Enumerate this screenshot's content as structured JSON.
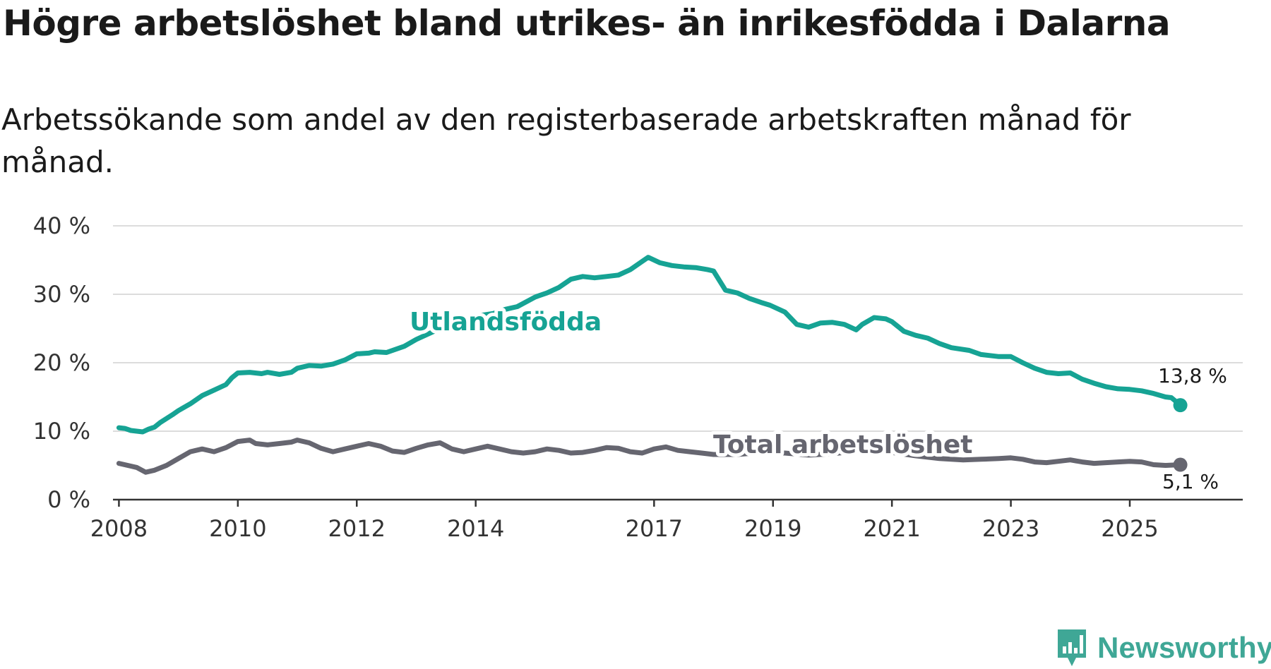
{
  "title": "Högre arbetslöshet bland utrikes- än inrikesfödda i Dalarna",
  "subtitle": "Arbetssökande som andel av den registerbaserade arbetskraften månad för månad.",
  "brand": "Newsworthy",
  "chart_data": {
    "type": "line",
    "ylim": [
      0,
      40
    ],
    "xlim": [
      2007.9,
      2026.9
    ],
    "y_ticks": [
      0,
      10,
      20,
      30,
      40
    ],
    "y_tick_labels": [
      "0 %",
      "10 %",
      "20 %",
      "30 %",
      "40 %"
    ],
    "x_ticks": [
      2008,
      2010,
      2012,
      2014,
      2017,
      2019,
      2021,
      2023,
      2025
    ],
    "x_tick_labels": [
      "2008",
      "2010",
      "2012",
      "2014",
      "2017",
      "2019",
      "2021",
      "2023",
      "2025"
    ],
    "grid": true,
    "series": [
      {
        "name": "Utlandsfödda",
        "color": "#16a394",
        "end_label": "13,8 %",
        "x": [
          2008.0,
          2008.1,
          2008.2,
          2008.4,
          2008.5,
          2008.6,
          2008.7,
          2008.9,
          2009.0,
          2009.2,
          2009.4,
          2009.6,
          2009.8,
          2009.9,
          2010.0,
          2010.2,
          2010.4,
          2010.5,
          2010.7,
          2010.9,
          2011.0,
          2011.2,
          2011.4,
          2011.6,
          2011.8,
          2012.0,
          2012.2,
          2012.3,
          2012.5,
          2012.8,
          2013.0,
          2013.3,
          2013.5,
          2013.8,
          2014.0,
          2014.3,
          2014.5,
          2014.7,
          2015.0,
          2015.2,
          2015.4,
          2015.6,
          2015.8,
          2016.0,
          2016.2,
          2016.4,
          2016.6,
          2016.8,
          2016.9,
          2017.1,
          2017.3,
          2017.5,
          2017.7,
          2017.9,
          2018.0,
          2018.2,
          2018.4,
          2018.6,
          2018.8,
          2018.95,
          2019.2,
          2019.4,
          2019.6,
          2019.8,
          2020.0,
          2020.2,
          2020.4,
          2020.5,
          2020.7,
          2020.9,
          2021.0,
          2021.2,
          2021.4,
          2021.6,
          2021.8,
          2022.0,
          2022.3,
          2022.5,
          2022.8,
          2023.0,
          2023.2,
          2023.4,
          2023.6,
          2023.8,
          2024.0,
          2024.2,
          2024.4,
          2024.6,
          2024.8,
          2025.0,
          2025.2,
          2025.4,
          2025.6,
          2025.7,
          2025.85
        ],
        "values": [
          10.5,
          10.4,
          10.1,
          9.9,
          10.3,
          10.6,
          11.3,
          12.4,
          13.0,
          14.0,
          15.2,
          16.0,
          16.8,
          17.8,
          18.5,
          18.6,
          18.4,
          18.6,
          18.3,
          18.6,
          19.2,
          19.6,
          19.5,
          19.8,
          20.4,
          21.3,
          21.4,
          21.6,
          21.5,
          22.4,
          23.4,
          24.6,
          25.4,
          26.0,
          26.8,
          27.2,
          27.8,
          28.2,
          29.6,
          30.2,
          31.0,
          32.2,
          32.6,
          32.4,
          32.6,
          32.8,
          33.6,
          34.8,
          35.4,
          34.6,
          34.2,
          34.0,
          33.9,
          33.6,
          33.4,
          30.6,
          30.2,
          29.4,
          28.8,
          28.4,
          27.4,
          25.6,
          25.2,
          25.8,
          25.9,
          25.6,
          24.8,
          25.6,
          26.6,
          26.4,
          26.0,
          24.6,
          24.0,
          23.6,
          22.8,
          22.2,
          21.8,
          21.2,
          20.9,
          20.9,
          20.0,
          19.2,
          18.6,
          18.4,
          18.5,
          17.6,
          17.0,
          16.5,
          16.2,
          16.1,
          15.9,
          15.5,
          15.0,
          14.9,
          13.8
        ]
      },
      {
        "name": "Total arbetslöshet",
        "color": "#666670",
        "end_label": "5,1 %",
        "x": [
          2008.0,
          2008.2,
          2008.3,
          2008.45,
          2008.6,
          2008.8,
          2009.0,
          2009.2,
          2009.4,
          2009.6,
          2009.8,
          2010.0,
          2010.2,
          2010.3,
          2010.5,
          2010.7,
          2010.9,
          2011.0,
          2011.2,
          2011.4,
          2011.6,
          2011.8,
          2012.0,
          2012.2,
          2012.4,
          2012.6,
          2012.8,
          2013.0,
          2013.2,
          2013.4,
          2013.6,
          2013.8,
          2014.0,
          2014.2,
          2014.4,
          2014.6,
          2014.8,
          2015.0,
          2015.2,
          2015.4,
          2015.6,
          2015.8,
          2016.0,
          2016.2,
          2016.4,
          2016.6,
          2016.8,
          2017.0,
          2017.2,
          2017.4,
          2017.6,
          2017.8,
          2018.0,
          2018.4,
          2018.8,
          2019.2,
          2019.6,
          2020.0,
          2020.3,
          2020.5,
          2020.7,
          2021.0,
          2021.4,
          2021.8,
          2022.2,
          2022.5,
          2022.8,
          2023.0,
          2023.2,
          2023.4,
          2023.6,
          2023.8,
          2024.0,
          2024.2,
          2024.4,
          2024.6,
          2024.8,
          2025.0,
          2025.2,
          2025.4,
          2025.6,
          2025.85
        ],
        "values": [
          5.3,
          4.9,
          4.7,
          4.0,
          4.3,
          5.0,
          6.0,
          7.0,
          7.4,
          7.0,
          7.6,
          8.5,
          8.7,
          8.2,
          8.0,
          8.2,
          8.4,
          8.7,
          8.3,
          7.5,
          7.0,
          7.4,
          7.8,
          8.2,
          7.8,
          7.1,
          6.9,
          7.5,
          8.0,
          8.3,
          7.4,
          7.0,
          7.4,
          7.8,
          7.4,
          7.0,
          6.8,
          7.0,
          7.4,
          7.2,
          6.8,
          6.9,
          7.2,
          7.6,
          7.5,
          7.0,
          6.8,
          7.4,
          7.7,
          7.2,
          7.0,
          6.8,
          6.6,
          6.6,
          6.9,
          6.8,
          6.5,
          6.7,
          7.0,
          7.2,
          7.0,
          6.9,
          6.4,
          6.0,
          5.8,
          5.9,
          6.0,
          6.1,
          5.9,
          5.5,
          5.4,
          5.6,
          5.8,
          5.5,
          5.3,
          5.4,
          5.5,
          5.6,
          5.5,
          5.1,
          5.0,
          5.1
        ]
      }
    ]
  }
}
